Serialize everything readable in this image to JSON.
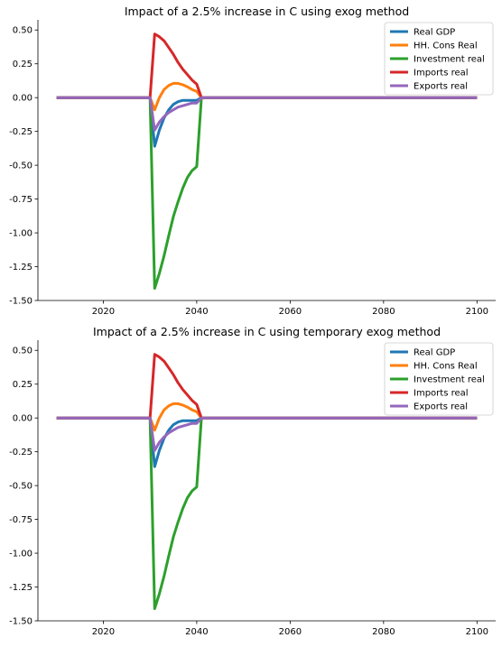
{
  "figure": {
    "charts": [
      {
        "title": "Impact of a 2.5% increase in C using exog method",
        "xlim": [
          2006,
          2104
        ],
        "ylim": [
          -1.5,
          0.575
        ],
        "xticks": [
          2020,
          2040,
          2060,
          2080,
          2100
        ],
        "yticks": [
          "0.50",
          "0.25",
          "0.00",
          "-0.25",
          "-0.50",
          "-0.75",
          "-1.00",
          "-1.25",
          "-1.50"
        ],
        "legend_position": "upper right"
      },
      {
        "title": "Impact of a 2.5% increase in C using temporary exog method",
        "xlim": [
          2006,
          2104
        ],
        "ylim": [
          -1.5,
          0.575
        ],
        "xticks": [
          2020,
          2040,
          2060,
          2080,
          2100
        ],
        "yticks": [
          "0.50",
          "0.25",
          "0.00",
          "-0.25",
          "-0.50",
          "-0.75",
          "-1.00",
          "-1.25",
          "-1.50"
        ],
        "legend_position": "upper right"
      }
    ]
  },
  "chart_data": [
    {
      "type": "line",
      "title": "Impact of a 2.5% increase in C using exog method",
      "xlabel": "",
      "ylabel": "",
      "xlim": [
        2006,
        2104
      ],
      "ylim": [
        -1.5,
        0.575
      ],
      "grid": false,
      "legend": "upper right",
      "series": [
        {
          "name": "Real GDP",
          "color": "#1f77b4",
          "x": [
            2010,
            2030,
            2031,
            2032,
            2033,
            2034,
            2035,
            2036,
            2037,
            2038,
            2039,
            2040,
            2041,
            2100
          ],
          "y": [
            0,
            0,
            -0.36,
            -0.24,
            -0.15,
            -0.09,
            -0.05,
            -0.03,
            -0.02,
            -0.02,
            -0.02,
            -0.02,
            0,
            0
          ]
        },
        {
          "name": "HH. Cons Real",
          "color": "#ff7f0e",
          "x": [
            2010,
            2030,
            2031,
            2032,
            2033,
            2034,
            2035,
            2036,
            2037,
            2038,
            2039,
            2040,
            2041,
            2100
          ],
          "y": [
            0,
            0,
            -0.09,
            0.0,
            0.06,
            0.09,
            0.105,
            0.105,
            0.095,
            0.08,
            0.06,
            0.045,
            0,
            0
          ]
        },
        {
          "name": "Investment real",
          "color": "#2ca02c",
          "x": [
            2010,
            2030,
            2031,
            2032,
            2033,
            2034,
            2035,
            2036,
            2037,
            2038,
            2039,
            2040,
            2041,
            2100
          ],
          "y": [
            0,
            0,
            -1.41,
            -1.3,
            -1.17,
            -1.02,
            -0.88,
            -0.77,
            -0.67,
            -0.59,
            -0.54,
            -0.51,
            0,
            0
          ]
        },
        {
          "name": "Imports real",
          "color": "#d62728",
          "x": [
            2010,
            2030,
            2031,
            2032,
            2033,
            2034,
            2035,
            2036,
            2037,
            2038,
            2039,
            2040,
            2041,
            2100
          ],
          "y": [
            0,
            0,
            0.47,
            0.45,
            0.42,
            0.37,
            0.32,
            0.26,
            0.21,
            0.17,
            0.13,
            0.1,
            0,
            0
          ]
        },
        {
          "name": "Exports real",
          "color": "#9467bd",
          "x": [
            2010,
            2030,
            2031,
            2032,
            2033,
            2034,
            2035,
            2036,
            2037,
            2038,
            2039,
            2040,
            2041,
            2100
          ],
          "y": [
            0,
            0,
            -0.24,
            -0.18,
            -0.14,
            -0.11,
            -0.09,
            -0.07,
            -0.06,
            -0.05,
            -0.04,
            -0.04,
            0,
            0
          ]
        }
      ]
    },
    {
      "type": "line",
      "title": "Impact of a 2.5% increase in C using temporary exog method",
      "xlabel": "",
      "ylabel": "",
      "xlim": [
        2006,
        2104
      ],
      "ylim": [
        -1.5,
        0.575
      ],
      "grid": false,
      "legend": "upper right",
      "series": [
        {
          "name": "Real GDP",
          "color": "#1f77b4",
          "x": [
            2010,
            2030,
            2031,
            2032,
            2033,
            2034,
            2035,
            2036,
            2037,
            2038,
            2039,
            2040,
            2041,
            2100
          ],
          "y": [
            0,
            0,
            -0.36,
            -0.24,
            -0.15,
            -0.09,
            -0.05,
            -0.03,
            -0.02,
            -0.02,
            -0.02,
            -0.02,
            0,
            0
          ]
        },
        {
          "name": "HH. Cons Real",
          "color": "#ff7f0e",
          "x": [
            2010,
            2030,
            2031,
            2032,
            2033,
            2034,
            2035,
            2036,
            2037,
            2038,
            2039,
            2040,
            2041,
            2100
          ],
          "y": [
            0,
            0,
            -0.09,
            0.0,
            0.06,
            0.09,
            0.105,
            0.105,
            0.095,
            0.08,
            0.06,
            0.045,
            0,
            0
          ]
        },
        {
          "name": "Investment real",
          "color": "#2ca02c",
          "x": [
            2010,
            2030,
            2031,
            2032,
            2033,
            2034,
            2035,
            2036,
            2037,
            2038,
            2039,
            2040,
            2041,
            2100
          ],
          "y": [
            0,
            0,
            -1.41,
            -1.3,
            -1.17,
            -1.02,
            -0.88,
            -0.77,
            -0.67,
            -0.59,
            -0.54,
            -0.51,
            0,
            0
          ]
        },
        {
          "name": "Imports real",
          "color": "#d62728",
          "x": [
            2010,
            2030,
            2031,
            2032,
            2033,
            2034,
            2035,
            2036,
            2037,
            2038,
            2039,
            2040,
            2041,
            2100
          ],
          "y": [
            0,
            0,
            0.47,
            0.45,
            0.42,
            0.37,
            0.32,
            0.26,
            0.21,
            0.17,
            0.13,
            0.1,
            0,
            0
          ]
        },
        {
          "name": "Exports real",
          "color": "#9467bd",
          "x": [
            2010,
            2030,
            2031,
            2032,
            2033,
            2034,
            2035,
            2036,
            2037,
            2038,
            2039,
            2040,
            2041,
            2100
          ],
          "y": [
            0,
            0,
            -0.24,
            -0.18,
            -0.14,
            -0.11,
            -0.09,
            -0.07,
            -0.06,
            -0.05,
            -0.04,
            -0.04,
            0,
            0
          ]
        }
      ]
    }
  ]
}
